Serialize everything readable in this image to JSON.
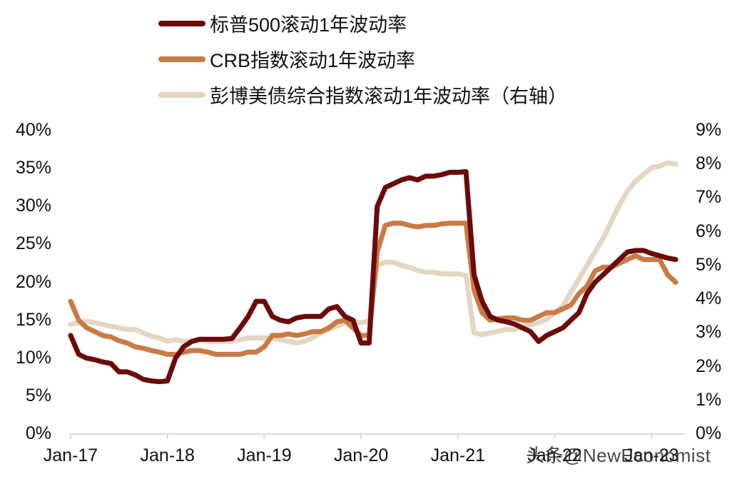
{
  "chart_data": {
    "type": "line",
    "title": "",
    "legend": {
      "position": "top",
      "entries": [
        {
          "label": "标普500滚动1年波动率",
          "color": "#6b0a0a",
          "axis": "left"
        },
        {
          "label": "CRB指数滚动1年波动率",
          "color": "#c97b45",
          "axis": "left"
        },
        {
          "label": "彭博美债综合指数滚动1年波动率（右轴）",
          "color": "#e3d6c3",
          "axis": "right"
        }
      ]
    },
    "x_ticks": [
      "Jan-17",
      "Jan-18",
      "Jan-19",
      "Jan-20",
      "Jan-21",
      "Jan-22",
      "Jan-23"
    ],
    "left_axis": {
      "ticks": [
        "0%",
        "5%",
        "10%",
        "15%",
        "20%",
        "25%",
        "30%",
        "35%",
        "40%"
      ],
      "ylim": [
        0,
        40
      ],
      "unit": "%"
    },
    "right_axis": {
      "ticks": [
        "0%",
        "1%",
        "2%",
        "3%",
        "4%",
        "5%",
        "6%",
        "7%",
        "8%",
        "9%"
      ],
      "ylim": [
        0,
        9
      ],
      "unit": "%"
    },
    "grid": false,
    "x": [
      "2017-01",
      "2017-02",
      "2017-03",
      "2017-04",
      "2017-05",
      "2017-06",
      "2017-07",
      "2017-08",
      "2017-09",
      "2017-10",
      "2017-11",
      "2017-12",
      "2018-01",
      "2018-02",
      "2018-03",
      "2018-04",
      "2018-05",
      "2018-06",
      "2018-07",
      "2018-08",
      "2018-09",
      "2018-10",
      "2018-11",
      "2018-12",
      "2019-01",
      "2019-02",
      "2019-03",
      "2019-04",
      "2019-05",
      "2019-06",
      "2019-07",
      "2019-08",
      "2019-09",
      "2019-10",
      "2019-11",
      "2019-12",
      "2020-01",
      "2020-02",
      "2020-03",
      "2020-04",
      "2020-05",
      "2020-06",
      "2020-07",
      "2020-08",
      "2020-09",
      "2020-10",
      "2020-11",
      "2020-12",
      "2021-01",
      "2021-02",
      "2021-03",
      "2021-04",
      "2021-05",
      "2021-06",
      "2021-07",
      "2021-08",
      "2021-09",
      "2021-10",
      "2021-11",
      "2021-12",
      "2022-01",
      "2022-02",
      "2022-03",
      "2022-04",
      "2022-05",
      "2022-06",
      "2022-07",
      "2022-08",
      "2022-09",
      "2022-10",
      "2022-11",
      "2022-12",
      "2023-01",
      "2023-02",
      "2023-03",
      "2023-04"
    ],
    "series": [
      {
        "name": "标普500滚动1年波动率",
        "axis": "left",
        "values": [
          13.0,
          10.5,
          10.0,
          9.8,
          9.5,
          9.3,
          8.2,
          8.2,
          7.8,
          7.2,
          7.0,
          6.9,
          7.0,
          10.0,
          11.5,
          12.2,
          12.5,
          12.5,
          12.5,
          12.5,
          12.6,
          14.0,
          15.5,
          17.5,
          17.5,
          15.5,
          15.0,
          14.8,
          15.3,
          15.5,
          15.5,
          15.5,
          16.5,
          16.8,
          15.5,
          15.0,
          12.0,
          12.0,
          30.0,
          32.5,
          33.0,
          33.5,
          33.8,
          33.5,
          34.0,
          34.0,
          34.2,
          34.5,
          34.5,
          34.6,
          21.0,
          17.5,
          15.5,
          15.0,
          14.8,
          14.5,
          14.0,
          13.5,
          12.2,
          13.0,
          13.5,
          14.0,
          15.0,
          16.0,
          18.5,
          20.0,
          21.0,
          22.0,
          23.0,
          24.0,
          24.2,
          24.2,
          23.8,
          23.5,
          23.2,
          23.0
        ]
      },
      {
        "name": "CRB指数滚动1年波动率",
        "axis": "left",
        "values": [
          17.5,
          15.0,
          14.0,
          13.5,
          13.0,
          12.8,
          12.3,
          12.0,
          11.5,
          11.3,
          11.0,
          10.8,
          10.5,
          10.5,
          10.8,
          11.0,
          11.0,
          10.8,
          10.5,
          10.5,
          10.5,
          10.5,
          10.8,
          10.8,
          11.5,
          13.0,
          13.0,
          13.2,
          13.0,
          13.2,
          13.5,
          13.5,
          14.0,
          14.8,
          15.0,
          14.0,
          13.0,
          13.0,
          24.0,
          27.5,
          27.8,
          27.8,
          27.5,
          27.3,
          27.5,
          27.5,
          27.7,
          27.8,
          27.8,
          27.8,
          19.0,
          16.0,
          15.0,
          15.2,
          15.3,
          15.3,
          15.0,
          15.0,
          15.5,
          16.0,
          16.0,
          16.5,
          17.0,
          18.5,
          19.5,
          21.5,
          22.0,
          22.0,
          22.5,
          23.0,
          23.5,
          23.0,
          23.0,
          23.0,
          21.0,
          20.0
        ]
      },
      {
        "name": "彭博美债综合指数滚动1年波动率（右轴）",
        "axis": "right",
        "values": [
          3.25,
          3.3,
          3.35,
          3.3,
          3.25,
          3.2,
          3.15,
          3.1,
          3.1,
          3.0,
          2.9,
          2.85,
          2.75,
          2.8,
          2.75,
          2.75,
          2.8,
          2.75,
          2.75,
          2.75,
          2.75,
          2.8,
          2.85,
          2.85,
          2.85,
          2.85,
          2.8,
          2.75,
          2.7,
          2.75,
          2.85,
          3.0,
          3.1,
          3.2,
          3.3,
          3.35,
          3.3,
          3.35,
          5.0,
          5.1,
          5.1,
          5.0,
          4.95,
          4.85,
          4.8,
          4.8,
          4.75,
          4.75,
          4.75,
          4.7,
          3.0,
          2.95,
          3.0,
          3.05,
          3.1,
          3.1,
          3.2,
          3.25,
          3.3,
          3.4,
          3.6,
          3.8,
          4.2,
          4.6,
          5.0,
          5.4,
          5.8,
          6.3,
          6.8,
          7.2,
          7.5,
          7.7,
          7.9,
          7.95,
          8.05,
          8.0
        ]
      }
    ]
  },
  "watermark": "头条@NewEconomist"
}
